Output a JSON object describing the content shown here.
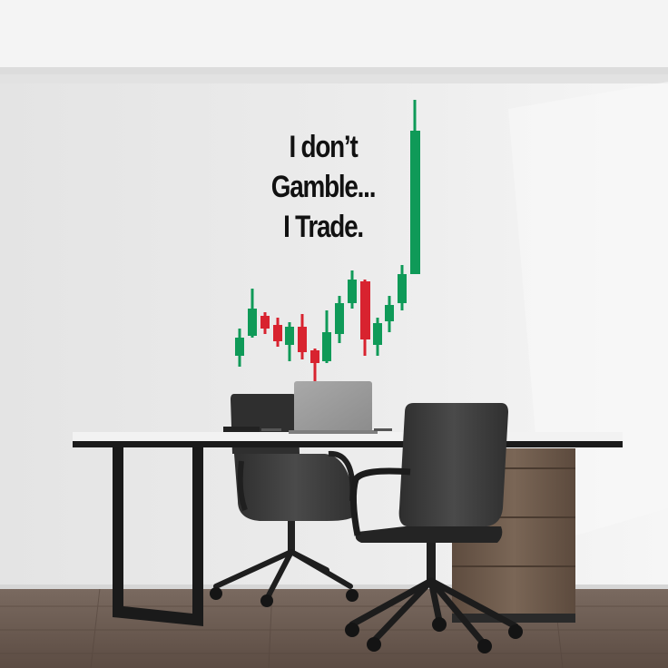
{
  "quote": {
    "line1": "I don’t",
    "line2": "Gamble...",
    "line3": "I Trade."
  },
  "colors": {
    "wall": "#ececec",
    "ceiling": "#f3f3f3",
    "floor": "#6b5a50",
    "candle_up": "#0f9a58",
    "candle_down": "#d8232f",
    "text": "#111111",
    "chair": "#3a3a3a",
    "desk_top": "#1b1b1b",
    "cabinet_wood": "#6d5a4b"
  },
  "candles": [
    {
      "dir": "up"
    },
    {
      "dir": "up"
    },
    {
      "dir": "down"
    },
    {
      "dir": "down"
    },
    {
      "dir": "up"
    },
    {
      "dir": "down"
    },
    {
      "dir": "down"
    },
    {
      "dir": "up"
    },
    {
      "dir": "up"
    },
    {
      "dir": "up"
    },
    {
      "dir": "down"
    },
    {
      "dir": "up"
    },
    {
      "dir": "up"
    },
    {
      "dir": "up"
    },
    {
      "dir": "up"
    }
  ]
}
